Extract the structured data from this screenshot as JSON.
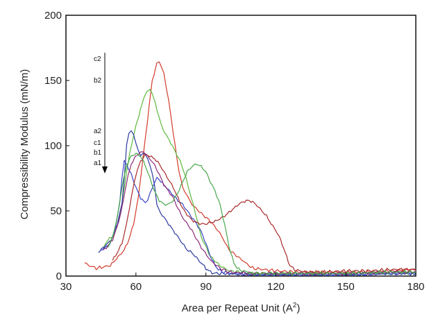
{
  "chart_data": {
    "type": "line",
    "title": "",
    "xlabel": "Area per Repeat Unit (A",
    "xlabel_sup": "2",
    "xlabel_close": ")",
    "ylabel": "Compressibility Modulus (mN/m)",
    "xlim": [
      30,
      180
    ],
    "ylim": [
      0,
      200
    ],
    "xticks": [
      "30",
      "60",
      "90",
      "120",
      "150",
      "180"
    ],
    "yticks": [
      "0",
      "50",
      "100",
      "150",
      "200"
    ],
    "grid": false,
    "legend": "none",
    "annotations": [
      "c2",
      "b2",
      "a2",
      "c1",
      "b1",
      "a1"
    ],
    "annotation_arrow": {
      "from_label": "c2",
      "to_label": "a1"
    },
    "series": [
      {
        "color": "#d23a2a",
        "x": [
          38,
          40,
          43,
          46,
          49,
          51,
          53,
          55,
          57,
          59,
          61,
          63,
          65,
          67,
          69,
          70,
          72,
          74,
          76,
          78,
          80,
          84,
          88,
          92,
          96,
          100,
          110,
          120,
          130,
          150,
          160,
          170,
          175,
          180
        ],
        "y": [
          10,
          8,
          6,
          7,
          8,
          12,
          16,
          20,
          28,
          40,
          60,
          90,
          120,
          150,
          163,
          165,
          155,
          135,
          110,
          85,
          68,
          55,
          48,
          42,
          33,
          20,
          6,
          4,
          3,
          3,
          3,
          4,
          5,
          5
        ]
      },
      {
        "color": "#5cb83a",
        "x": [
          46,
          48,
          50,
          52,
          54,
          56,
          58,
          60,
          62,
          64,
          66,
          67,
          69,
          71,
          73,
          75,
          77,
          79,
          81,
          83,
          86,
          88,
          92,
          96,
          100,
          110,
          130,
          150,
          170,
          180
        ],
        "y": [
          22,
          28,
          30,
          38,
          55,
          80,
          100,
          115,
          128,
          140,
          143,
          140,
          128,
          115,
          108,
          102,
          95,
          88,
          78,
          65,
          45,
          30,
          15,
          8,
          4,
          2,
          2,
          2,
          3,
          3
        ]
      },
      {
        "color": "#2c3a9e",
        "x": [
          44,
          46,
          48,
          50,
          52,
          54,
          55,
          56,
          57,
          58,
          59,
          60,
          61,
          62,
          63,
          64,
          65,
          66,
          67,
          68,
          69,
          70,
          72,
          74,
          76,
          78,
          80,
          82,
          84,
          86,
          88,
          90,
          92,
          94,
          96,
          100,
          110,
          130,
          150,
          170,
          180
        ],
        "y": [
          18,
          22,
          25,
          30,
          40,
          55,
          75,
          100,
          110,
          112,
          108,
          102,
          96,
          92,
          95,
          93,
          90,
          85,
          78,
          70,
          55,
          50,
          45,
          40,
          35,
          30,
          25,
          20,
          18,
          14,
          10,
          6,
          3,
          2,
          2,
          2,
          1,
          1,
          1,
          2,
          2
        ]
      },
      {
        "color": "#3a45c4",
        "x": [
          45,
          47,
          49,
          51,
          53,
          54,
          55,
          56,
          57,
          58,
          60,
          62,
          64,
          65,
          66,
          67,
          68,
          69,
          70,
          72,
          74,
          76,
          78,
          80,
          82,
          84,
          86,
          88,
          90,
          92,
          94,
          96,
          100,
          110,
          130,
          150,
          170,
          180
        ],
        "y": [
          20,
          22,
          25,
          35,
          55,
          75,
          88,
          86,
          82,
          78,
          68,
          60,
          56,
          58,
          63,
          68,
          72,
          75,
          74,
          70,
          66,
          62,
          58,
          55,
          50,
          45,
          40,
          34,
          25,
          15,
          8,
          4,
          2,
          1,
          1,
          1,
          2,
          2
        ]
      },
      {
        "color": "#8e2a7a",
        "x": [
          46,
          48,
          50,
          52,
          54,
          56,
          58,
          60,
          61,
          62,
          63,
          64,
          65,
          66,
          67,
          68,
          70,
          72,
          74,
          76,
          78,
          80,
          84,
          88,
          92,
          96,
          100,
          110,
          130,
          150,
          170,
          180
        ],
        "y": [
          20,
          23,
          28,
          38,
          52,
          72,
          86,
          92,
          94,
          95,
          95,
          94,
          92,
          90,
          88,
          85,
          78,
          70,
          65,
          60,
          52,
          45,
          35,
          22,
          12,
          6,
          3,
          2,
          2,
          2,
          3,
          3
        ]
      },
      {
        "color": "#a82a2a",
        "x": [
          50,
          52,
          54,
          56,
          58,
          60,
          62,
          64,
          65,
          66,
          68,
          70,
          72,
          74,
          76,
          78,
          80,
          82,
          84,
          86,
          88,
          90,
          92,
          94,
          96,
          98,
          100,
          102,
          104,
          106,
          108,
          110,
          112,
          114,
          116,
          118,
          120,
          122,
          124,
          126,
          128,
          130,
          135,
          140,
          150,
          160,
          170,
          180
        ],
        "y": [
          12,
          18,
          25,
          40,
          60,
          78,
          88,
          93,
          93,
          92,
          90,
          86,
          80,
          74,
          68,
          60,
          52,
          47,
          43,
          41,
          40,
          40,
          41,
          42,
          44,
          46,
          49,
          52,
          55,
          57,
          58,
          57,
          54,
          50,
          46,
          40,
          35,
          28,
          18,
          8,
          5,
          4,
          3,
          3,
          4,
          4,
          5,
          5
        ]
      },
      {
        "color": "#48a84a",
        "x": [
          48,
          50,
          52,
          54,
          56,
          58,
          60,
          62,
          64,
          66,
          68,
          70,
          72,
          74,
          76,
          78,
          80,
          82,
          84,
          86,
          88,
          90,
          92,
          94,
          96,
          98,
          100,
          102,
          104,
          110,
          120,
          130,
          150,
          170,
          180
        ],
        "y": [
          22,
          30,
          45,
          68,
          85,
          92,
          94,
          92,
          85,
          75,
          65,
          58,
          55,
          55,
          58,
          64,
          72,
          80,
          84,
          86,
          84,
          80,
          72,
          65,
          55,
          40,
          22,
          10,
          5,
          2,
          2,
          2,
          2,
          3,
          3
        ]
      }
    ]
  }
}
